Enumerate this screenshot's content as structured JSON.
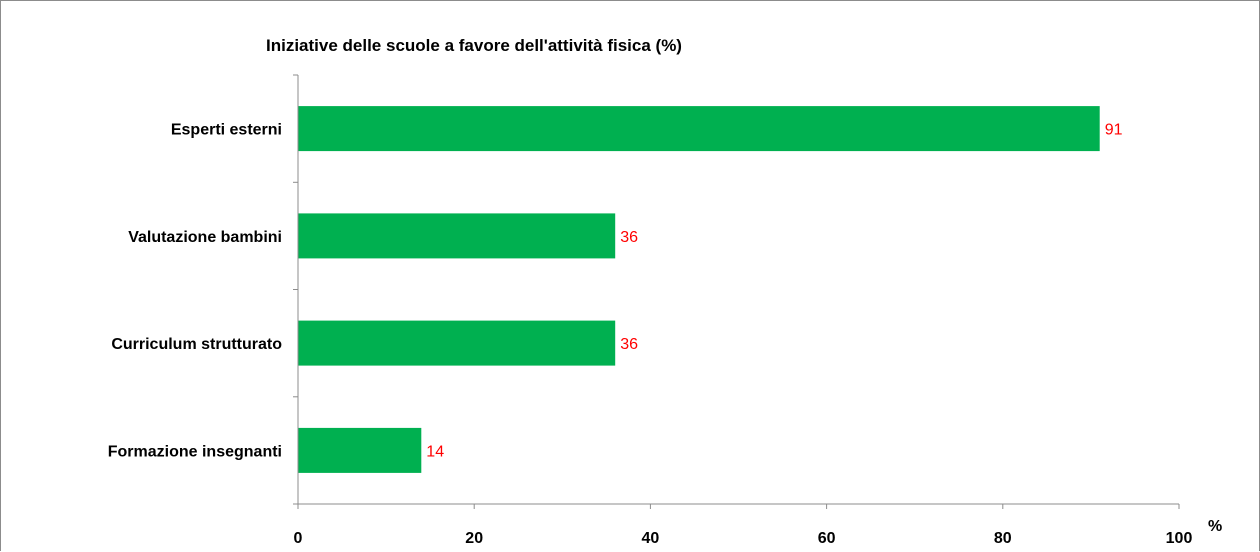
{
  "chart_data": {
    "type": "bar",
    "orientation": "horizontal",
    "title": "Iniziative delle scuole a favore dell'attività fisica (%)",
    "xlabel": "%",
    "ylabel": "",
    "categories": [
      "Esperti esterni",
      "Valutazione bambini",
      "Curriculum strutturato",
      "Formazione insegnanti"
    ],
    "values": [
      91,
      36,
      36,
      14
    ],
    "data_labels": [
      "91",
      "36",
      "36",
      "14"
    ],
    "xlim": [
      0,
      100
    ],
    "xticks": [
      0,
      20,
      40,
      60,
      80,
      100
    ],
    "xtick_labels": [
      "0",
      "20",
      "40",
      "60",
      "80",
      "100"
    ],
    "grid": false,
    "legend": "none",
    "bar_color": "#00b050",
    "data_label_color": "#ff0000",
    "axis_color": "#8c8c8c"
  }
}
